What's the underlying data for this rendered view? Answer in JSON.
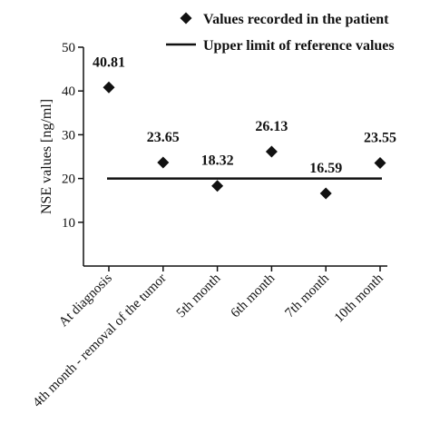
{
  "chart_data": {
    "type": "scatter",
    "ylabel": "NSE values [ng/ml]",
    "ylim": [
      0,
      50
    ],
    "yticks": [
      10,
      20,
      30,
      40,
      50
    ],
    "categories": [
      "At diagnosis",
      "4th month - removal of the tumor",
      "5th month",
      "6th month",
      "7th month",
      "10th month"
    ],
    "series": [
      {
        "name": "Values recorded in the patient",
        "marker": "diamond",
        "values": [
          40.81,
          23.65,
          18.32,
          26.13,
          16.59,
          23.55
        ],
        "labels": [
          "40.81",
          "23.65",
          "18.32",
          "26.13",
          "16.59",
          "23.55"
        ]
      },
      {
        "name": "Upper limit of reference values",
        "marker": "line",
        "value": 20
      }
    ],
    "legend_position": "top-right",
    "grid": false,
    "colors": {
      "marks": "#111111",
      "background": "#ffffff"
    }
  }
}
